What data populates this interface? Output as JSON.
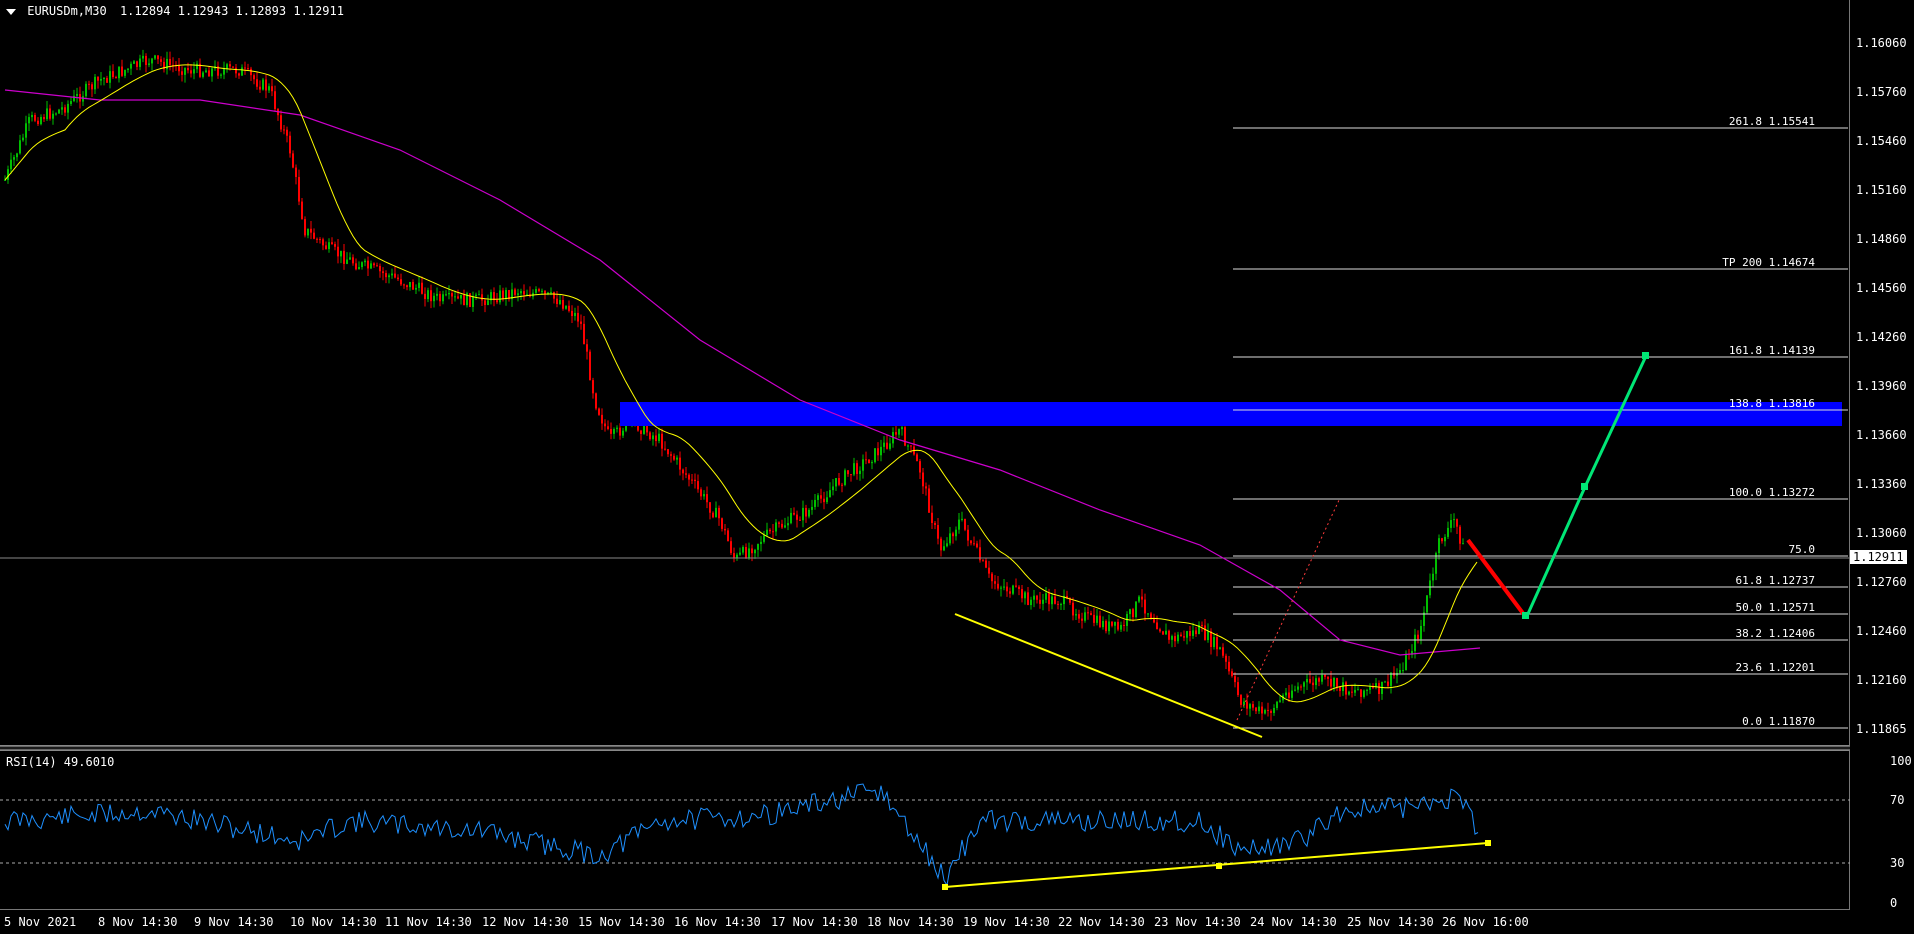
{
  "header": {
    "symbol": "EURUSDm,M30",
    "quotes": "1.12894 1.12943 1.12893 1.12911"
  },
  "price_axis": [
    "1.16060",
    "1.15760",
    "1.15460",
    "1.15160",
    "1.14860",
    "1.14560",
    "1.14260",
    "1.13960",
    "1.13660",
    "1.13360",
    "1.13060",
    "1.12760",
    "1.12460",
    "1.12160",
    "1.11865"
  ],
  "current_price": "1.12911",
  "time_axis": [
    "5 Nov 2021",
    "8 Nov 14:30",
    "9 Nov 14:30",
    "10 Nov 14:30",
    "11 Nov 14:30",
    "12 Nov 14:30",
    "15 Nov 14:30",
    "16 Nov 14:30",
    "17 Nov 14:30",
    "18 Nov 14:30",
    "19 Nov 14:30",
    "22 Nov 14:30",
    "23 Nov 14:30",
    "24 Nov 14:30",
    "25 Nov 14:30",
    "26 Nov 16:00"
  ],
  "fib_levels": [
    {
      "label": "261.8 1.15541"
    },
    {
      "label": "TP 200 1.14674"
    },
    {
      "label": "161.8 1.14139"
    },
    {
      "label": "138.8 1.13816"
    },
    {
      "label": "100.0 1.13272"
    },
    {
      "label": "75.0"
    },
    {
      "label": "61.8 1.12737"
    },
    {
      "label": "50.0 1.12571"
    },
    {
      "label": "38.2 1.12406"
    },
    {
      "label": "23.6 1.12201"
    },
    {
      "label": "0.0 1.11870"
    }
  ],
  "rsi": {
    "title": "RSI(14) 49.6010",
    "value": 49.601,
    "levels": [
      "100",
      "70",
      "30",
      "0"
    ]
  },
  "colors": {
    "background": "#000000",
    "zone": "#0000ff",
    "ma_fast": "#ffff00",
    "ma_slow": "#cc00cc",
    "projection_up": "#00e676",
    "projection_down": "#ff0000",
    "rsi_line": "#1e90ff",
    "trendline": "#ffff00",
    "bull_candle": "#00c000",
    "bear_candle": "#ff0000"
  }
}
